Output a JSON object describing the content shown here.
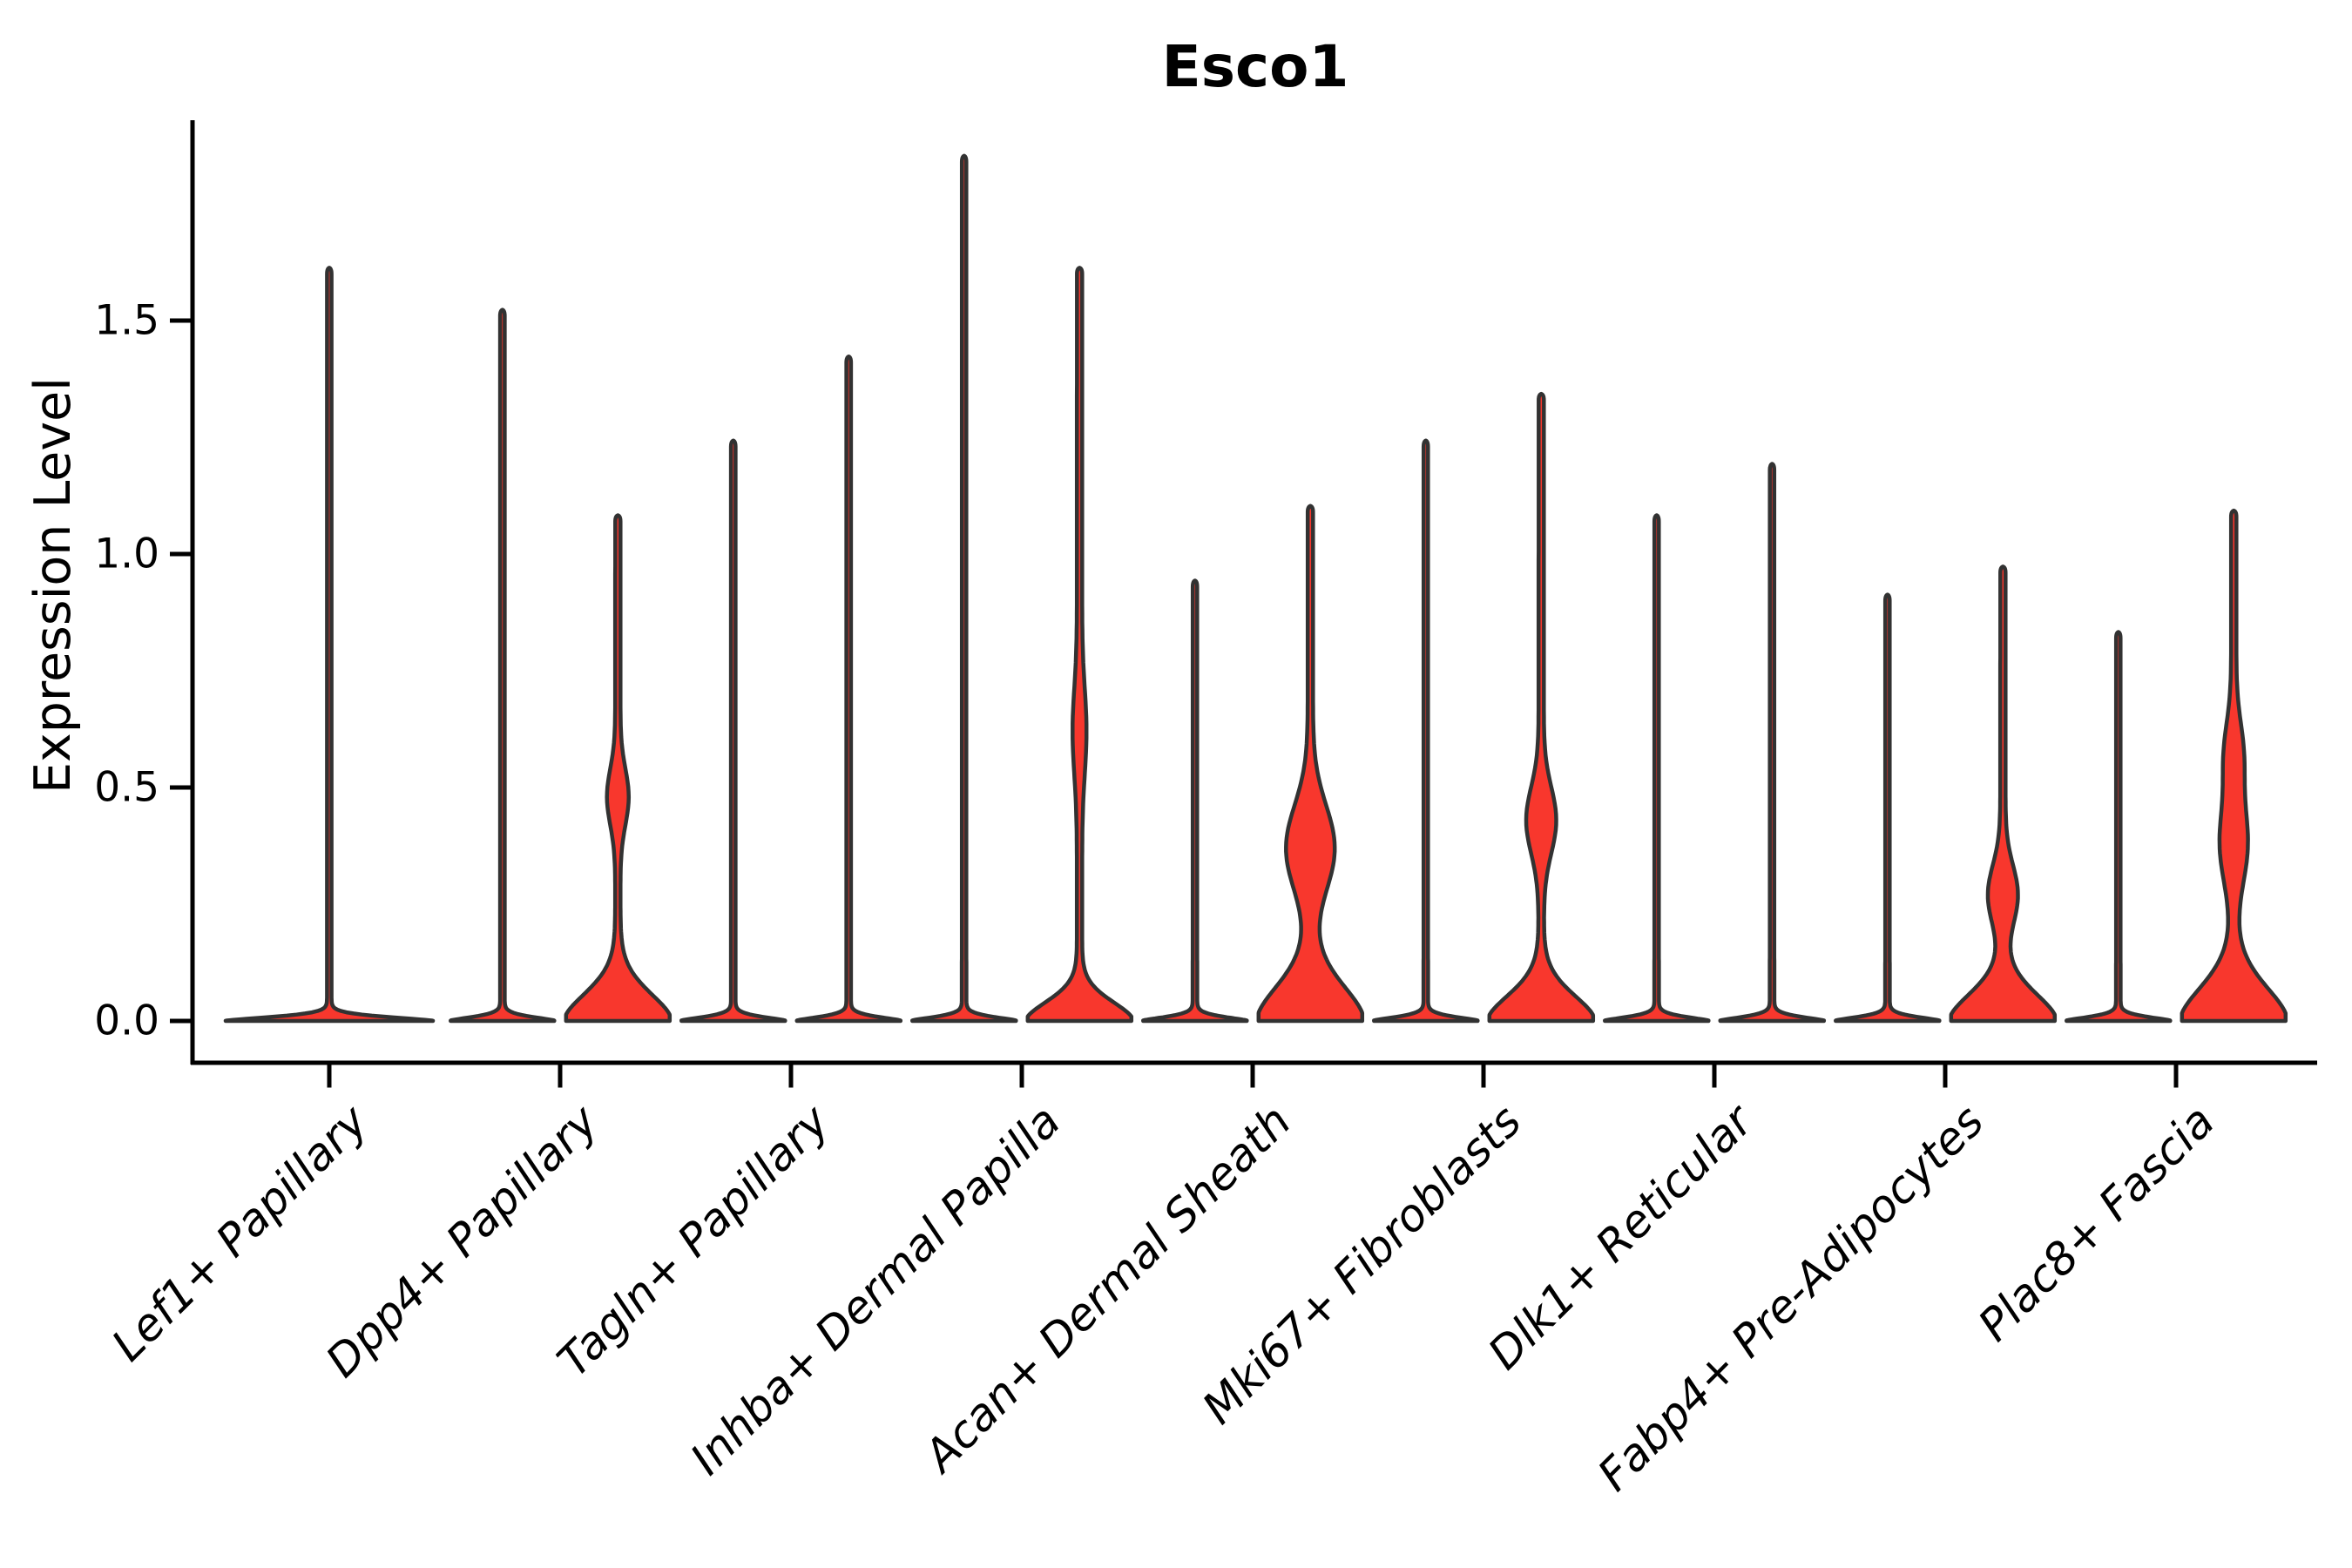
{
  "title": "Esco1",
  "chart_data": {
    "type": "violin",
    "title": "Esco1",
    "ylabel": "Expression Level",
    "xlabel": "",
    "yticks": [
      "0.0",
      "0.5",
      "1.0",
      "1.5"
    ],
    "ytick_values": [
      0.0,
      0.5,
      1.0,
      1.5
    ],
    "ylim": [
      -0.09,
      1.93
    ],
    "grid": false,
    "legend": "none",
    "categories": [
      "Lef1+ Papillary",
      "Dpp4+ Papillary",
      "Tagln+ Papillary",
      "Inhba+ Dermal Papilla",
      "Acan+ Dermal Sheath",
      "Mki67+ Fibroblasts",
      "Dlk1+ Reticular",
      "Fabp4+ Pre-Adipocytes",
      "Plac8+ Fascia"
    ],
    "colors": {
      "violin_fill": "#F8372D",
      "violin_stroke": "#323232",
      "axis": "#000000",
      "text": "#000000"
    },
    "series": [
      {
        "category": "Lef1+ Papillary",
        "violins": [
          {
            "side": "center",
            "max": 1.6,
            "profile": "spike",
            "base_bandwidth": 0.012
          }
        ]
      },
      {
        "category": "Dpp4+ Papillary",
        "violins": [
          {
            "side": "left",
            "max": 1.51,
            "profile": "spike",
            "base_bandwidth": 0.012
          },
          {
            "side": "right",
            "max": 1.07,
            "profile": "density",
            "base_bandwidth": 0.085,
            "bulges": [
              {
                "center": 0.48,
                "sigma": 0.085,
                "rel_width": 0.16
              }
            ]
          }
        ]
      },
      {
        "category": "Tagln+ Papillary",
        "violins": [
          {
            "side": "left",
            "max": 1.23,
            "profile": "spike",
            "base_bandwidth": 0.012
          },
          {
            "side": "right",
            "max": 1.41,
            "profile": "spike",
            "base_bandwidth": 0.012
          }
        ]
      },
      {
        "category": "Inhba+ Dermal Papilla",
        "violins": [
          {
            "side": "left",
            "max": 1.84,
            "profile": "spike",
            "base_bandwidth": 0.012
          },
          {
            "side": "right",
            "max": 1.6,
            "profile": "density",
            "base_bandwidth": 0.06,
            "bulges": [
              {
                "center": 0.62,
                "sigma": 0.13,
                "rel_width": 0.084
              }
            ]
          }
        ]
      },
      {
        "category": "Acan+ Dermal Sheath",
        "violins": [
          {
            "side": "left",
            "max": 0.93,
            "profile": "spike",
            "base_bandwidth": 0.012
          },
          {
            "side": "right",
            "max": 1.09,
            "profile": "density",
            "base_bandwidth": 0.11,
            "bulges": [
              {
                "center": 0.37,
                "sigma": 0.13,
                "rel_width": 0.42
              }
            ]
          }
        ]
      },
      {
        "category": "Mki67+ Fibroblasts",
        "violins": [
          {
            "side": "left",
            "max": 1.23,
            "profile": "spike",
            "base_bandwidth": 0.012
          },
          {
            "side": "right",
            "max": 1.33,
            "profile": "density",
            "base_bandwidth": 0.08,
            "bulges": [
              {
                "center": 0.43,
                "sigma": 0.1,
                "rel_width": 0.24
              }
            ]
          }
        ]
      },
      {
        "category": "Dlk1+ Reticular",
        "violins": [
          {
            "side": "left",
            "max": 1.07,
            "profile": "spike",
            "base_bandwidth": 0.012
          },
          {
            "side": "right",
            "max": 1.18,
            "profile": "spike",
            "base_bandwidth": 0.012
          }
        ]
      },
      {
        "category": "Fabp4+ Pre-Adipocytes",
        "violins": [
          {
            "side": "left",
            "max": 0.9,
            "profile": "spike",
            "base_bandwidth": 0.012
          },
          {
            "side": "right",
            "max": 0.96,
            "profile": "density",
            "base_bandwidth": 0.085,
            "bulges": [
              {
                "center": 0.27,
                "sigma": 0.09,
                "rel_width": 0.24
              }
            ]
          }
        ]
      },
      {
        "category": "Plac8+ Fascia",
        "violins": [
          {
            "side": "left",
            "max": 0.82,
            "profile": "spike",
            "base_bandwidth": 0.012
          },
          {
            "side": "right",
            "max": 1.08,
            "profile": "density",
            "base_bandwidth": 0.105,
            "bulges": [
              {
                "center": 0.38,
                "sigma": 0.12,
                "rel_width": 0.22
              },
              {
                "center": 0.57,
                "sigma": 0.1,
                "rel_width": 0.135
              }
            ]
          }
        ]
      }
    ]
  }
}
